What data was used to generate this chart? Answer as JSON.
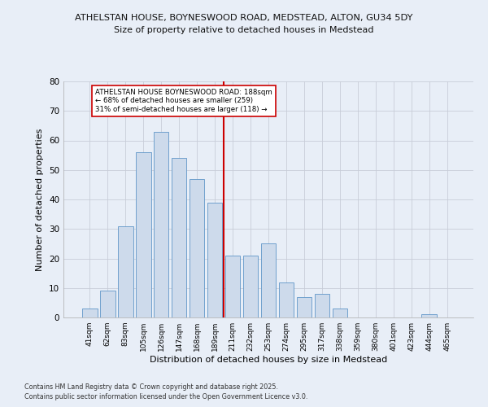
{
  "title1": "ATHELSTAN HOUSE, BOYNESWOOD ROAD, MEDSTEAD, ALTON, GU34 5DY",
  "title2": "Size of property relative to detached houses in Medstead",
  "xlabel": "Distribution of detached houses by size in Medstead",
  "ylabel": "Number of detached properties",
  "bar_labels": [
    "41sqm",
    "62sqm",
    "83sqm",
    "105sqm",
    "126sqm",
    "147sqm",
    "168sqm",
    "189sqm",
    "211sqm",
    "232sqm",
    "253sqm",
    "274sqm",
    "295sqm",
    "317sqm",
    "338sqm",
    "359sqm",
    "380sqm",
    "401sqm",
    "423sqm",
    "444sqm",
    "465sqm"
  ],
  "bar_values": [
    3,
    9,
    31,
    56,
    63,
    54,
    47,
    39,
    21,
    21,
    25,
    12,
    7,
    8,
    3,
    0,
    0,
    0,
    0,
    1,
    0
  ],
  "bar_color": "#cddaeb",
  "bar_edge_color": "#6096c8",
  "vline_color": "#cc0000",
  "annotation_text": "ATHELSTAN HOUSE BOYNESWOOD ROAD: 188sqm\n← 68% of detached houses are smaller (259)\n31% of semi-detached houses are larger (118) →",
  "ylim": [
    0,
    80
  ],
  "yticks": [
    0,
    10,
    20,
    30,
    40,
    50,
    60,
    70,
    80
  ],
  "grid_color": "#c8cdd8",
  "bg_color": "#e8eef7",
  "footer1": "Contains HM Land Registry data © Crown copyright and database right 2025.",
  "footer2": "Contains public sector information licensed under the Open Government Licence v3.0."
}
